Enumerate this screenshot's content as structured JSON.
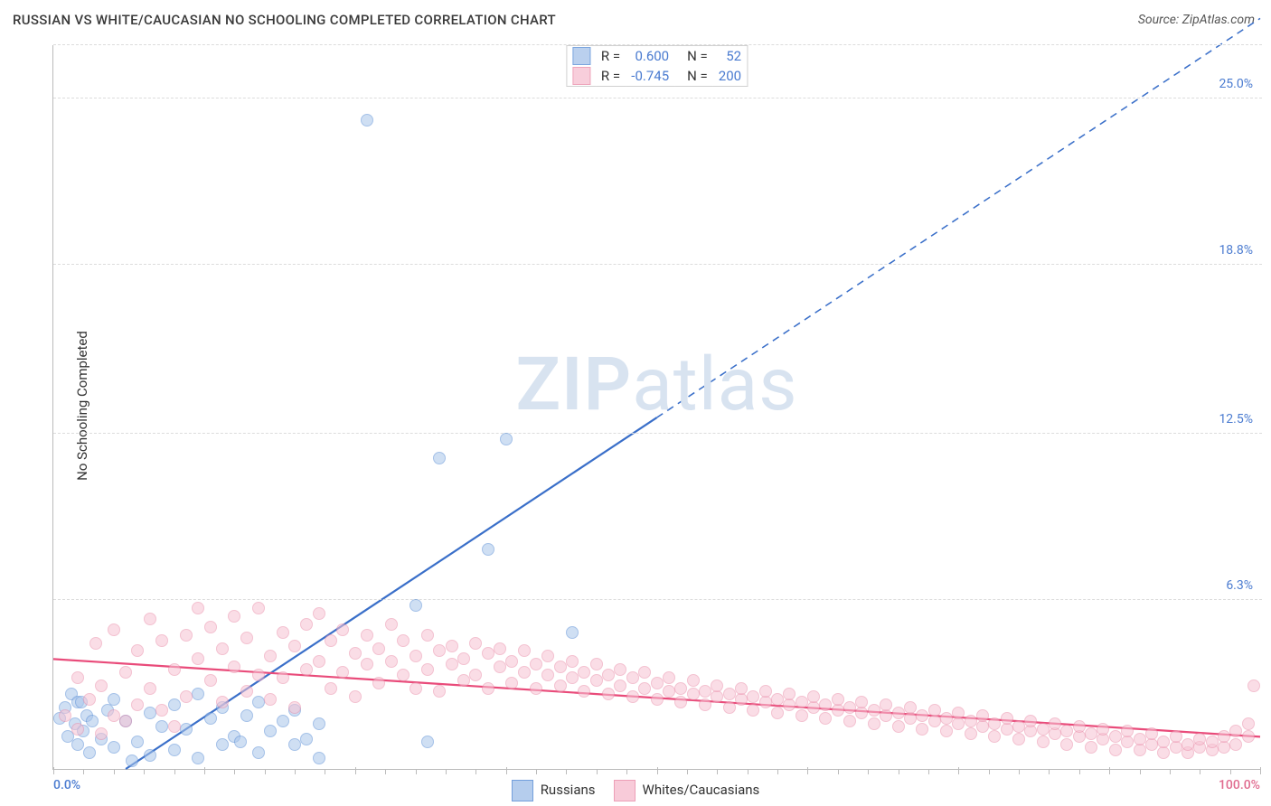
{
  "title": "RUSSIAN VS WHITE/CAUCASIAN NO SCHOOLING COMPLETED CORRELATION CHART",
  "source": "Source: ZipAtlas.com",
  "ylabel": "No Schooling Completed",
  "watermark_bold": "ZIP",
  "watermark_light": "atlas",
  "watermark_color": "#d8e3f0",
  "chart": {
    "type": "scatter",
    "background_color": "#ffffff",
    "grid_color": "#dcdcdc",
    "axis_color": "#bbbbbb",
    "xlim": [
      0,
      100
    ],
    "ylim": [
      0,
      27
    ],
    "yticks": [
      {
        "v": 6.3,
        "label": "6.3%"
      },
      {
        "v": 12.5,
        "label": "12.5%"
      },
      {
        "v": 18.8,
        "label": "18.8%"
      },
      {
        "v": 25.0,
        "label": "25.0%"
      }
    ],
    "ytick_color": "#4a7bd0",
    "xtick_major": [
      0,
      12.5,
      25,
      37.5,
      50,
      62.5,
      75,
      87.5,
      100
    ],
    "xlabels": [
      {
        "v": 0,
        "label": "0.0%",
        "color": "#4a7bd0"
      },
      {
        "v": 100,
        "label": "100.0%",
        "color": "#e06b8f"
      }
    ],
    "series": [
      {
        "key": "russians",
        "label": "Russians",
        "fill_color": "#a9c5ea",
        "stroke_color": "#5b8fd6",
        "fill_opacity": 0.55,
        "marker_size": 14,
        "R": "0.600",
        "N": "52",
        "stat_color": "#4a7bd0",
        "trend": {
          "x1": 6,
          "y1": 0,
          "x2": 100,
          "y2": 28,
          "color": "#3a6fc9",
          "width": 2.2,
          "dash_from_x": 50
        },
        "points": [
          [
            0.5,
            1.9
          ],
          [
            1,
            2.3
          ],
          [
            1.2,
            1.2
          ],
          [
            1.5,
            2.8
          ],
          [
            1.8,
            1.7
          ],
          [
            2,
            2.5
          ],
          [
            2,
            0.9
          ],
          [
            2.3,
            2.5
          ],
          [
            2.5,
            1.4
          ],
          [
            2.8,
            2.0
          ],
          [
            3,
            0.6
          ],
          [
            3.2,
            1.8
          ],
          [
            4,
            1.1
          ],
          [
            4.5,
            2.2
          ],
          [
            5,
            0.8
          ],
          [
            5,
            2.6
          ],
          [
            6,
            1.8
          ],
          [
            6.5,
            0.3
          ],
          [
            7,
            1.0
          ],
          [
            8,
            2.1
          ],
          [
            8,
            0.5
          ],
          [
            9,
            1.6
          ],
          [
            10,
            2.4
          ],
          [
            10,
            0.7
          ],
          [
            11,
            1.5
          ],
          [
            12,
            2.8
          ],
          [
            12,
            0.4
          ],
          [
            13,
            1.9
          ],
          [
            14,
            0.9
          ],
          [
            14,
            2.3
          ],
          [
            15,
            1.2
          ],
          [
            15.5,
            1.0
          ],
          [
            16,
            2.0
          ],
          [
            17,
            0.6
          ],
          [
            17,
            2.5
          ],
          [
            18,
            1.4
          ],
          [
            19,
            1.8
          ],
          [
            20,
            0.9
          ],
          [
            20,
            2.2
          ],
          [
            21,
            1.1
          ],
          [
            22,
            0.4
          ],
          [
            22,
            1.7
          ],
          [
            30,
            6.1
          ],
          [
            31,
            1.0
          ],
          [
            26,
            24.2
          ],
          [
            32,
            11.6
          ],
          [
            36,
            8.2
          ],
          [
            37.5,
            12.3
          ],
          [
            43,
            5.1
          ]
        ]
      },
      {
        "key": "whites",
        "label": "Whites/Caucasians",
        "fill_color": "#f7c3d3",
        "stroke_color": "#ea8fab",
        "fill_opacity": 0.55,
        "marker_size": 14,
        "R": "-0.745",
        "N": "200",
        "stat_color": "#4a7bd0",
        "trend": {
          "x1": 0,
          "y1": 4.1,
          "x2": 100,
          "y2": 1.2,
          "color": "#e94b7a",
          "width": 2.2
        },
        "points": [
          [
            1,
            2.0
          ],
          [
            2,
            3.4
          ],
          [
            2,
            1.5
          ],
          [
            3,
            2.6
          ],
          [
            3.5,
            4.7
          ],
          [
            4,
            1.3
          ],
          [
            4,
            3.1
          ],
          [
            5,
            2.0
          ],
          [
            5,
            5.2
          ],
          [
            6,
            3.6
          ],
          [
            6,
            1.8
          ],
          [
            7,
            4.4
          ],
          [
            7,
            2.4
          ],
          [
            8,
            5.6
          ],
          [
            8,
            3.0
          ],
          [
            9,
            2.2
          ],
          [
            9,
            4.8
          ],
          [
            10,
            3.7
          ],
          [
            10,
            1.6
          ],
          [
            11,
            5.0
          ],
          [
            11,
            2.7
          ],
          [
            12,
            4.1
          ],
          [
            12,
            6.0
          ],
          [
            13,
            3.3
          ],
          [
            13,
            5.3
          ],
          [
            14,
            2.5
          ],
          [
            14,
            4.5
          ],
          [
            15,
            3.8
          ],
          [
            15,
            5.7
          ],
          [
            16,
            2.9
          ],
          [
            16,
            4.9
          ],
          [
            17,
            3.5
          ],
          [
            17,
            6.0
          ],
          [
            18,
            4.2
          ],
          [
            18,
            2.6
          ],
          [
            19,
            5.1
          ],
          [
            19,
            3.4
          ],
          [
            20,
            4.6
          ],
          [
            20,
            2.3
          ],
          [
            21,
            5.4
          ],
          [
            21,
            3.7
          ],
          [
            22,
            4.0
          ],
          [
            22,
            5.8
          ],
          [
            23,
            3.0
          ],
          [
            23,
            4.8
          ],
          [
            24,
            5.2
          ],
          [
            24,
            3.6
          ],
          [
            25,
            4.3
          ],
          [
            25,
            2.7
          ],
          [
            26,
            5.0
          ],
          [
            26,
            3.9
          ],
          [
            27,
            4.5
          ],
          [
            27,
            3.2
          ],
          [
            28,
            5.4
          ],
          [
            28,
            4.0
          ],
          [
            29,
            3.5
          ],
          [
            29,
            4.8
          ],
          [
            30,
            4.2
          ],
          [
            30,
            3.0
          ],
          [
            31,
            5.0
          ],
          [
            31,
            3.7
          ],
          [
            32,
            4.4
          ],
          [
            32,
            2.9
          ],
          [
            33,
            3.9
          ],
          [
            33,
            4.6
          ],
          [
            34,
            3.3
          ],
          [
            34,
            4.1
          ],
          [
            35,
            4.7
          ],
          [
            35,
            3.5
          ],
          [
            36,
            3.0
          ],
          [
            36,
            4.3
          ],
          [
            37,
            3.8
          ],
          [
            37,
            4.5
          ],
          [
            38,
            3.2
          ],
          [
            38,
            4.0
          ],
          [
            39,
            3.6
          ],
          [
            39,
            4.4
          ],
          [
            40,
            3.0
          ],
          [
            40,
            3.9
          ],
          [
            41,
            3.5
          ],
          [
            41,
            4.2
          ],
          [
            42,
            3.1
          ],
          [
            42,
            3.8
          ],
          [
            43,
            3.4
          ],
          [
            43,
            4.0
          ],
          [
            44,
            2.9
          ],
          [
            44,
            3.6
          ],
          [
            45,
            3.3
          ],
          [
            45,
            3.9
          ],
          [
            46,
            2.8
          ],
          [
            46,
            3.5
          ],
          [
            47,
            3.1
          ],
          [
            47,
            3.7
          ],
          [
            48,
            2.7
          ],
          [
            48,
            3.4
          ],
          [
            49,
            3.0
          ],
          [
            49,
            3.6
          ],
          [
            50,
            2.6
          ],
          [
            50,
            3.2
          ],
          [
            51,
            2.9
          ],
          [
            51,
            3.4
          ],
          [
            52,
            2.5
          ],
          [
            52,
            3.0
          ],
          [
            53,
            2.8
          ],
          [
            53,
            3.3
          ],
          [
            54,
            2.4
          ],
          [
            54,
            2.9
          ],
          [
            55,
            2.7
          ],
          [
            55,
            3.1
          ],
          [
            56,
            2.3
          ],
          [
            56,
            2.8
          ],
          [
            57,
            2.6
          ],
          [
            57,
            3.0
          ],
          [
            58,
            2.2
          ],
          [
            58,
            2.7
          ],
          [
            59,
            2.5
          ],
          [
            59,
            2.9
          ],
          [
            60,
            2.1
          ],
          [
            60,
            2.6
          ],
          [
            61,
            2.4
          ],
          [
            61,
            2.8
          ],
          [
            62,
            2.0
          ],
          [
            62,
            2.5
          ],
          [
            63,
            2.3
          ],
          [
            63,
            2.7
          ],
          [
            64,
            1.9
          ],
          [
            64,
            2.4
          ],
          [
            65,
            2.2
          ],
          [
            65,
            2.6
          ],
          [
            66,
            1.8
          ],
          [
            66,
            2.3
          ],
          [
            67,
            2.1
          ],
          [
            67,
            2.5
          ],
          [
            68,
            1.7
          ],
          [
            68,
            2.2
          ],
          [
            69,
            2.0
          ],
          [
            69,
            2.4
          ],
          [
            70,
            1.6
          ],
          [
            70,
            2.1
          ],
          [
            71,
            1.9
          ],
          [
            71,
            2.3
          ],
          [
            72,
            1.5
          ],
          [
            72,
            2.0
          ],
          [
            73,
            1.8
          ],
          [
            73,
            2.2
          ],
          [
            74,
            1.4
          ],
          [
            74,
            1.9
          ],
          [
            75,
            1.7
          ],
          [
            75,
            2.1
          ],
          [
            76,
            1.3
          ],
          [
            76,
            1.8
          ],
          [
            77,
            1.6
          ],
          [
            77,
            2.0
          ],
          [
            78,
            1.2
          ],
          [
            78,
            1.7
          ],
          [
            79,
            1.5
          ],
          [
            79,
            1.9
          ],
          [
            80,
            1.1
          ],
          [
            80,
            1.6
          ],
          [
            81,
            1.4
          ],
          [
            81,
            1.8
          ],
          [
            82,
            1.0
          ],
          [
            82,
            1.5
          ],
          [
            83,
            1.3
          ],
          [
            83,
            1.7
          ],
          [
            84,
            0.9
          ],
          [
            84,
            1.4
          ],
          [
            85,
            1.2
          ],
          [
            85,
            1.6
          ],
          [
            86,
            0.8
          ],
          [
            86,
            1.3
          ],
          [
            87,
            1.1
          ],
          [
            87,
            1.5
          ],
          [
            88,
            0.7
          ],
          [
            88,
            1.2
          ],
          [
            89,
            1.0
          ],
          [
            89,
            1.4
          ],
          [
            90,
            0.7
          ],
          [
            90,
            1.1
          ],
          [
            91,
            0.9
          ],
          [
            91,
            1.3
          ],
          [
            92,
            0.6
          ],
          [
            92,
            1.0
          ],
          [
            93,
            0.8
          ],
          [
            93,
            1.2
          ],
          [
            94,
            0.6
          ],
          [
            94,
            0.9
          ],
          [
            95,
            0.8
          ],
          [
            95,
            1.1
          ],
          [
            96,
            0.7
          ],
          [
            96,
            1.0
          ],
          [
            97,
            0.8
          ],
          [
            97,
            1.2
          ],
          [
            98,
            0.9
          ],
          [
            98,
            1.4
          ],
          [
            99,
            1.2
          ],
          [
            99,
            1.7
          ],
          [
            99.5,
            3.1
          ]
        ]
      }
    ]
  }
}
